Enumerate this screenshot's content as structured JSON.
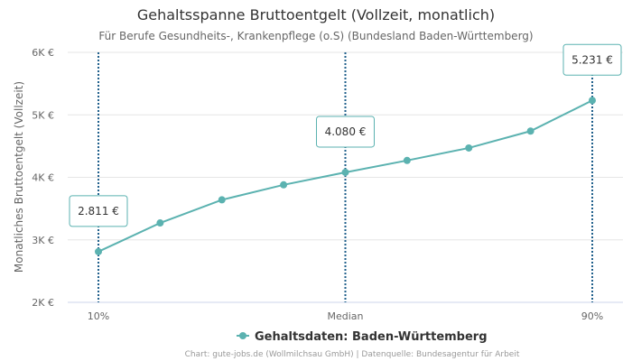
{
  "chart_data": {
    "type": "line",
    "title": "Gehaltsspanne Bruttoentgelt (Vollzeit, monatlich)",
    "subtitle": "Für Berufe Gesundheits-, Krankenpflege (o.S) (Bundesland Baden-Württemberg)",
    "ylabel": "Monatliches Bruttoentgelt (Vollzeit)",
    "ylim": [
      2000,
      6000
    ],
    "y_ticks": [
      2000,
      3000,
      4000,
      5000,
      6000
    ],
    "y_tick_labels": [
      "2K €",
      "3K €",
      "4K €",
      "5K €",
      "6K €"
    ],
    "x_tick_labels": [
      "10%",
      "Median",
      "90%"
    ],
    "x_tick_positions": [
      0,
      4,
      8
    ],
    "grid": true,
    "legend_position": "bottom-center",
    "color": "#5bb2b0",
    "marker_line_color": "#1f5f8b",
    "series": [
      {
        "name": "Gehaltsdaten: Baden-Württemberg",
        "x": [
          0,
          1,
          2,
          3,
          4,
          5,
          6,
          7,
          8
        ],
        "values": [
          2811,
          3270,
          3640,
          3880,
          4080,
          4270,
          4470,
          4740,
          5231
        ]
      }
    ],
    "annotations": [
      {
        "index": 0,
        "label": "2.811 €"
      },
      {
        "index": 4,
        "label": "4.080 €"
      },
      {
        "index": 8,
        "label": "5.231 €"
      }
    ],
    "credits": "Chart: gute-jobs.de (Wollmilchsau GmbH) | Datenquelle: Bundesagentur für Arbeit"
  }
}
